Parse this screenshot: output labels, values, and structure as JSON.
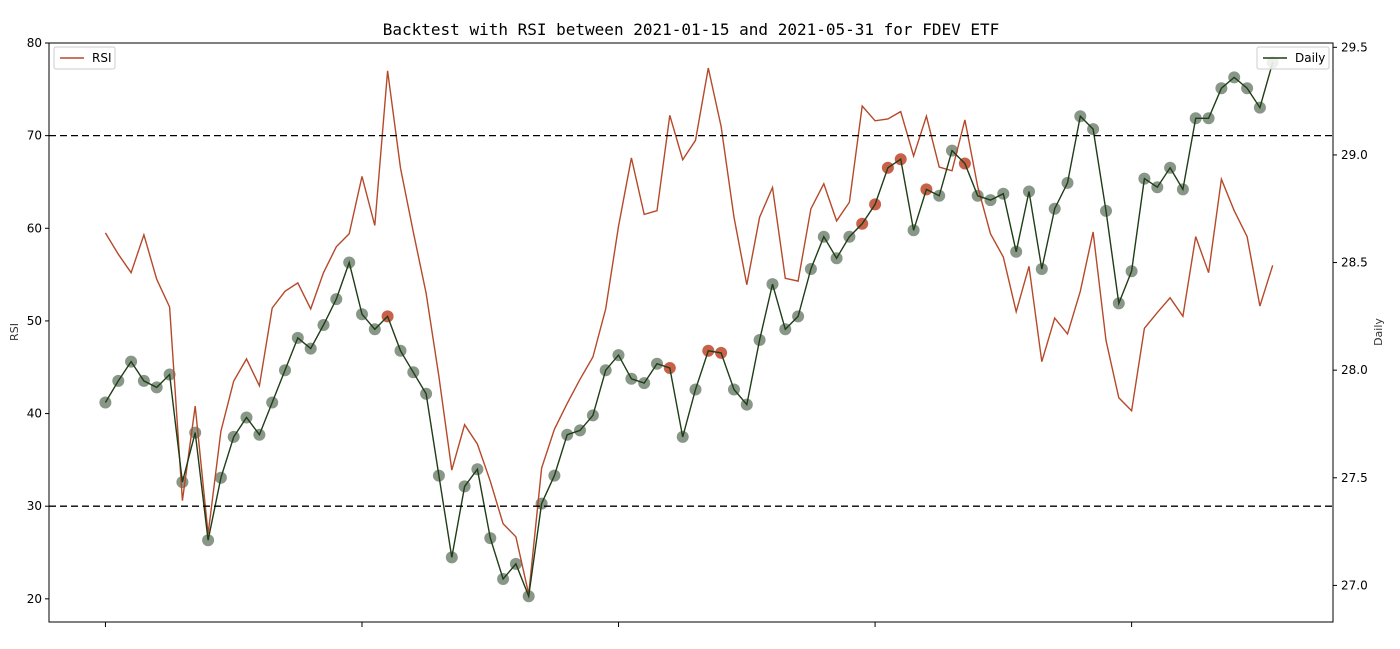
{
  "chart_data": {
    "type": "line",
    "title": "Backtest with RSI between 2021-01-15 and 2021-05-31 for FDEV ETF",
    "left_axis": {
      "label": "RSI",
      "ylim": [
        17.5,
        80
      ],
      "ticks": [
        20,
        30,
        40,
        50,
        60,
        70,
        80
      ]
    },
    "right_axis": {
      "label": "Daily",
      "ylim": [
        26.83,
        29.52
      ],
      "ticks": [
        "27.0",
        "27.5",
        "28.0",
        "28.5",
        "29.0",
        "29.5"
      ]
    },
    "x_range": [
      -4.4,
      95.7
    ],
    "x_ticks": [
      0,
      20,
      40,
      60,
      80
    ],
    "thresholds": [
      70,
      30
    ],
    "grid": false,
    "colors": {
      "rsi": "#b5492a",
      "daily": "#1f3d16",
      "hold_marker": "#556b55",
      "signal_marker": "#c0442a",
      "threshold": "#000000"
    },
    "series": [
      {
        "name": "RSI",
        "axis": "left",
        "legend": "top-left",
        "values": [
          59.5,
          57.2,
          55.2,
          59.3,
          54.5,
          51.5,
          30.6,
          40.8,
          27.0,
          38.1,
          43.5,
          45.9,
          43.0,
          51.4,
          53.2,
          54.1,
          51.3,
          55.2,
          58.0,
          59.4,
          65.6,
          60.3,
          77.0,
          66.5,
          59.6,
          53.0,
          44.0,
          33.9,
          38.8,
          36.7,
          32.7,
          28.1,
          26.7,
          20.5,
          34.1,
          38.3,
          41.1,
          43.7,
          46.1,
          51.3,
          60.2,
          67.6,
          61.5,
          61.9,
          72.2,
          67.4,
          69.5,
          77.3,
          71.0,
          61.2,
          53.9,
          61.2,
          64.4,
          54.6,
          54.3,
          62.1,
          64.8,
          60.8,
          62.8,
          73.2,
          71.6,
          71.8,
          72.6,
          67.8,
          72.1,
          66.6,
          66.2,
          71.7,
          64.5,
          59.4,
          56.9,
          51.0,
          55.9,
          45.6,
          50.3,
          48.6,
          53.2,
          59.6,
          47.9,
          41.7,
          40.3,
          49.2,
          50.9,
          52.5,
          50.5,
          59.1,
          55.2,
          65.3,
          61.9,
          59.1,
          51.6,
          56.0
        ]
      },
      {
        "name": "Daily",
        "axis": "right",
        "legend": "top-right",
        "values": [
          27.85,
          27.95,
          28.04,
          27.95,
          27.92,
          27.98,
          27.48,
          27.71,
          27.21,
          27.5,
          27.69,
          27.78,
          27.7,
          27.85,
          28.0,
          28.15,
          28.1,
          28.21,
          28.33,
          28.5,
          28.26,
          28.19,
          28.25,
          28.09,
          27.99,
          27.89,
          27.51,
          27.13,
          27.46,
          27.54,
          27.22,
          27.03,
          27.1,
          26.95,
          27.38,
          27.51,
          27.7,
          27.72,
          27.79,
          28.0,
          28.07,
          27.96,
          27.94,
          28.03,
          28.01,
          27.69,
          27.91,
          28.09,
          28.08,
          27.91,
          27.84,
          28.14,
          28.4,
          28.19,
          28.25,
          28.47,
          28.62,
          28.52,
          28.62,
          28.68,
          28.77,
          28.94,
          28.98,
          28.65,
          28.84,
          28.81,
          29.02,
          28.96,
          28.81,
          28.79,
          28.82,
          28.55,
          28.83,
          28.47,
          28.75,
          28.87,
          29.18,
          29.12,
          28.74,
          28.31,
          28.46,
          28.89,
          28.85,
          28.94,
          28.84,
          29.17,
          29.17,
          29.31,
          29.36,
          29.31,
          29.22,
          29.43
        ],
        "signal_indices": [
          22,
          44,
          47,
          48,
          59,
          60,
          61,
          62,
          64,
          67
        ]
      }
    ]
  }
}
